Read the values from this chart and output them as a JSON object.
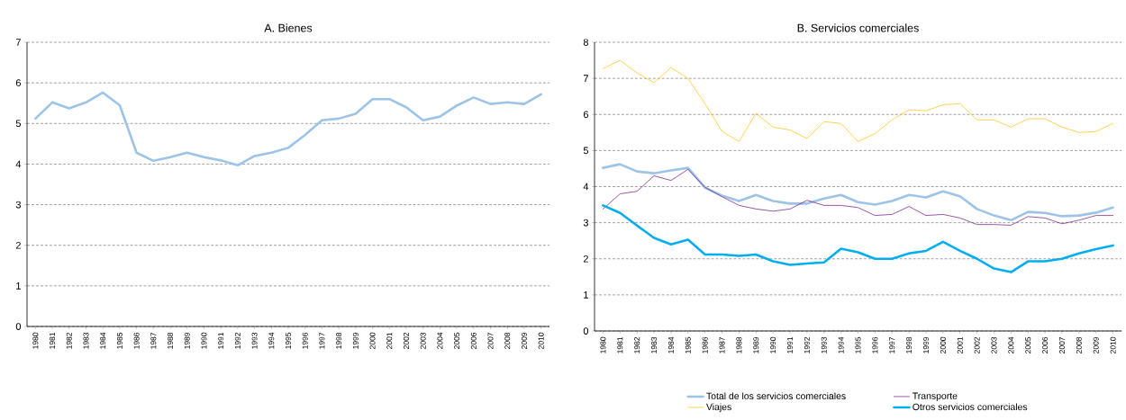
{
  "chart_data": [
    {
      "type": "line",
      "title": "A. Bienes",
      "categories": [
        "1980",
        "1981",
        "1982",
        "1983",
        "1984",
        "1985",
        "1986",
        "1987",
        "1988",
        "1989",
        "1990",
        "1991",
        "1992",
        "1993",
        "1994",
        "1995",
        "1996",
        "1997",
        "1998",
        "1999",
        "2000",
        "2001",
        "2002",
        "2003",
        "2004",
        "2005",
        "2006",
        "2007",
        "2008",
        "2009",
        "2010"
      ],
      "series": [
        {
          "color": "#9dc3e6",
          "values": [
            5.12,
            5.52,
            5.37,
            5.52,
            5.76,
            5.45,
            4.28,
            4.08,
            4.17,
            4.28,
            4.17,
            4.09,
            3.97,
            4.2,
            4.28,
            4.4,
            4.72,
            5.08,
            5.12,
            5.24,
            5.6,
            5.6,
            5.4,
            5.08,
            5.17,
            5.44,
            5.64,
            5.48,
            5.52,
            5.48,
            5.72
          ]
        }
      ],
      "ylim": [
        0,
        7
      ],
      "yticks": [
        0,
        1,
        2,
        3,
        4,
        5,
        6,
        7
      ],
      "grid": "y",
      "marker": "none",
      "line_style": "solid"
    },
    {
      "type": "line",
      "title": "B. Servicios comerciales",
      "categories": [
        "1980",
        "1981",
        "1982",
        "1983",
        "1984",
        "1985",
        "1986",
        "1987",
        "1988",
        "1989",
        "1990",
        "1991",
        "1992",
        "1993",
        "1994",
        "1995",
        "1996",
        "1997",
        "1998",
        "1999",
        "2000",
        "2001",
        "2002",
        "2003",
        "2004",
        "2005",
        "2006",
        "2007",
        "2008",
        "2009",
        "2010"
      ],
      "series": [
        {
          "name": "Total de los servicios comerciales",
          "color": "#9dc3e6",
          "values": [
            4.52,
            4.62,
            4.42,
            4.37,
            4.45,
            4.52,
            3.97,
            3.75,
            3.6,
            3.77,
            3.6,
            3.53,
            3.53,
            3.67,
            3.77,
            3.57,
            3.5,
            3.6,
            3.77,
            3.7,
            3.87,
            3.73,
            3.38,
            3.2,
            3.07,
            3.3,
            3.27,
            3.18,
            3.2,
            3.28,
            3.42
          ]
        },
        {
          "name": "Transporte",
          "color": "#7f2f8f",
          "values": [
            3.38,
            3.8,
            3.87,
            4.3,
            4.17,
            4.48,
            3.98,
            3.72,
            3.48,
            3.38,
            3.32,
            3.38,
            3.62,
            3.48,
            3.48,
            3.42,
            3.2,
            3.23,
            3.45,
            3.2,
            3.23,
            3.13,
            2.95,
            2.95,
            2.93,
            3.17,
            3.13,
            2.97,
            3.07,
            3.2,
            3.2
          ]
        },
        {
          "name": "Viajes",
          "color": "#ffc629",
          "values": [
            7.27,
            7.5,
            7.15,
            6.88,
            7.3,
            7.0,
            6.3,
            5.53,
            5.25,
            6.03,
            5.65,
            5.57,
            5.33,
            5.8,
            5.75,
            5.25,
            5.47,
            5.85,
            6.13,
            6.1,
            6.27,
            6.3,
            5.85,
            5.85,
            5.65,
            5.88,
            5.88,
            5.65,
            5.5,
            5.53,
            5.75
          ]
        },
        {
          "name": "Otros servicios comerciales",
          "color": "#00aeef",
          "values": [
            3.48,
            3.27,
            2.92,
            2.58,
            2.4,
            2.53,
            2.12,
            2.12,
            2.08,
            2.12,
            1.93,
            1.83,
            1.87,
            1.9,
            2.28,
            2.18,
            2.0,
            2.0,
            2.15,
            2.22,
            2.47,
            2.22,
            2.0,
            1.73,
            1.63,
            1.93,
            1.93,
            2.0,
            2.15,
            2.27,
            2.37
          ]
        }
      ],
      "ylim": [
        0,
        8
      ],
      "yticks": [
        0,
        1,
        2,
        3,
        4,
        5,
        6,
        7,
        8
      ],
      "grid": "y",
      "legend": "bottom",
      "marker": "none",
      "line_style": "solid"
    }
  ]
}
